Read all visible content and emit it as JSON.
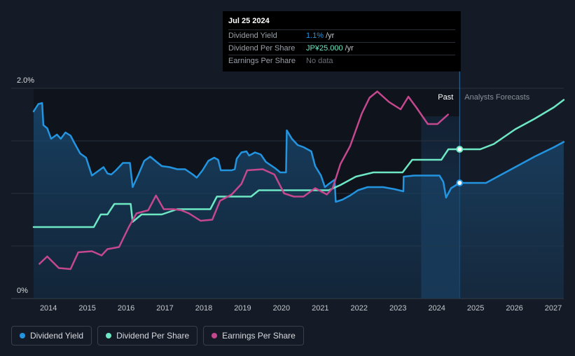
{
  "chart_data": {
    "type": "line",
    "title": "",
    "xlabel": "",
    "ylabel": "",
    "y_axis_labels": [
      "2.0%",
      "0%"
    ],
    "x_ticks": [
      "2014",
      "2015",
      "2016",
      "2017",
      "2018",
      "2019",
      "2020",
      "2021",
      "2022",
      "2023",
      "2024",
      "2025",
      "2026",
      "2027"
    ],
    "xlim": [
      2013.6,
      2027.25
    ],
    "ylim": [
      0,
      2.0
    ],
    "grid": true,
    "legend_position": "bottom-left",
    "region_labels": {
      "past": "Past",
      "forecast": "Analysts Forecasts"
    },
    "past_band": [
      2023.58,
      2024.57
    ],
    "series": [
      {
        "name": "Dividend Yield",
        "color": "#2394df",
        "filled": true,
        "points": [
          [
            2013.6,
            1.78
          ],
          [
            2013.72,
            1.85
          ],
          [
            2013.82,
            1.86
          ],
          [
            2013.85,
            1.65
          ],
          [
            2013.95,
            1.62
          ],
          [
            2014.05,
            1.52
          ],
          [
            2014.2,
            1.56
          ],
          [
            2014.3,
            1.52
          ],
          [
            2014.42,
            1.58
          ],
          [
            2014.55,
            1.55
          ],
          [
            2014.65,
            1.48
          ],
          [
            2014.8,
            1.38
          ],
          [
            2014.95,
            1.34
          ],
          [
            2015.1,
            1.17
          ],
          [
            2015.25,
            1.21
          ],
          [
            2015.4,
            1.25
          ],
          [
            2015.5,
            1.19
          ],
          [
            2015.6,
            1.18
          ],
          [
            2015.72,
            1.22
          ],
          [
            2015.9,
            1.29
          ],
          [
            2016.08,
            1.29
          ],
          [
            2016.15,
            1.06
          ],
          [
            2016.3,
            1.18
          ],
          [
            2016.45,
            1.31
          ],
          [
            2016.6,
            1.35
          ],
          [
            2016.8,
            1.29
          ],
          [
            2016.9,
            1.26
          ],
          [
            2017.1,
            1.25
          ],
          [
            2017.3,
            1.23
          ],
          [
            2017.5,
            1.23
          ],
          [
            2017.7,
            1.18
          ],
          [
            2017.8,
            1.15
          ],
          [
            2017.95,
            1.22
          ],
          [
            2018.1,
            1.31
          ],
          [
            2018.25,
            1.34
          ],
          [
            2018.35,
            1.32
          ],
          [
            2018.42,
            1.22
          ],
          [
            2018.7,
            1.22
          ],
          [
            2018.78,
            1.23
          ],
          [
            2018.83,
            1.33
          ],
          [
            2018.95,
            1.39
          ],
          [
            2019.08,
            1.4
          ],
          [
            2019.15,
            1.36
          ],
          [
            2019.3,
            1.39
          ],
          [
            2019.45,
            1.37
          ],
          [
            2019.58,
            1.3
          ],
          [
            2019.7,
            1.27
          ],
          [
            2019.82,
            1.24
          ],
          [
            2019.95,
            1.2
          ],
          [
            2020.1,
            1.2
          ],
          [
            2020.12,
            1.6
          ],
          [
            2020.25,
            1.52
          ],
          [
            2020.4,
            1.46
          ],
          [
            2020.55,
            1.44
          ],
          [
            2020.75,
            1.4
          ],
          [
            2020.85,
            1.26
          ],
          [
            2021.0,
            1.17
          ],
          [
            2021.1,
            1.06
          ],
          [
            2021.2,
            1.09
          ],
          [
            2021.35,
            1.13
          ],
          [
            2021.38,
            0.92
          ],
          [
            2021.55,
            0.94
          ],
          [
            2021.75,
            0.98
          ],
          [
            2021.95,
            1.03
          ],
          [
            2022.2,
            1.06
          ],
          [
            2022.6,
            1.06
          ],
          [
            2022.9,
            1.04
          ],
          [
            2023.12,
            1.02
          ],
          [
            2023.13,
            1.16
          ],
          [
            2023.4,
            1.17
          ],
          [
            2023.75,
            1.17
          ],
          [
            2024.05,
            1.17
          ],
          [
            2024.15,
            1.11
          ],
          [
            2024.22,
            0.96
          ],
          [
            2024.35,
            1.05
          ],
          [
            2024.57,
            1.1
          ],
          [
            2024.85,
            1.1
          ],
          [
            2025.25,
            1.1
          ],
          [
            2025.55,
            1.16
          ],
          [
            2026.0,
            1.25
          ],
          [
            2026.5,
            1.35
          ],
          [
            2027.0,
            1.44
          ],
          [
            2027.25,
            1.49
          ]
        ]
      },
      {
        "name": "Dividend Per Share",
        "color": "#6ee7c4",
        "points": [
          [
            2013.6,
            0.68
          ],
          [
            2015.15,
            0.68
          ],
          [
            2015.33,
            0.8
          ],
          [
            2015.5,
            0.8
          ],
          [
            2015.68,
            0.9
          ],
          [
            2016.1,
            0.9
          ],
          [
            2016.15,
            0.73
          ],
          [
            2016.38,
            0.8
          ],
          [
            2016.9,
            0.8
          ],
          [
            2017.3,
            0.85
          ],
          [
            2017.9,
            0.85
          ],
          [
            2018.15,
            0.85
          ],
          [
            2018.32,
            0.97
          ],
          [
            2019.2,
            0.97
          ],
          [
            2019.4,
            1.03
          ],
          [
            2020.7,
            1.03
          ],
          [
            2021.2,
            1.03
          ],
          [
            2021.5,
            1.08
          ],
          [
            2021.9,
            1.16
          ],
          [
            2022.35,
            1.2
          ],
          [
            2023.1,
            1.2
          ],
          [
            2023.35,
            1.32
          ],
          [
            2024.1,
            1.32
          ],
          [
            2024.28,
            1.42
          ],
          [
            2024.57,
            1.42
          ],
          [
            2025.1,
            1.42
          ],
          [
            2025.45,
            1.47
          ],
          [
            2026.0,
            1.61
          ],
          [
            2026.5,
            1.71
          ],
          [
            2027.0,
            1.82
          ],
          [
            2027.25,
            1.89
          ]
        ]
      },
      {
        "name": "Earnings Per Share",
        "color": "#c5488f",
        "points": [
          [
            2013.75,
            0.33
          ],
          [
            2013.95,
            0.4
          ],
          [
            2014.25,
            0.29
          ],
          [
            2014.55,
            0.28
          ],
          [
            2014.75,
            0.44
          ],
          [
            2015.1,
            0.45
          ],
          [
            2015.35,
            0.41
          ],
          [
            2015.5,
            0.47
          ],
          [
            2015.8,
            0.49
          ],
          [
            2016.05,
            0.68
          ],
          [
            2016.25,
            0.81
          ],
          [
            2016.55,
            0.84
          ],
          [
            2016.75,
            0.98
          ],
          [
            2016.95,
            0.85
          ],
          [
            2017.2,
            0.85
          ],
          [
            2017.4,
            0.84
          ],
          [
            2017.6,
            0.81
          ],
          [
            2017.9,
            0.74
          ],
          [
            2018.2,
            0.75
          ],
          [
            2018.4,
            0.93
          ],
          [
            2018.7,
            0.99
          ],
          [
            2018.95,
            1.09
          ],
          [
            2019.1,
            1.22
          ],
          [
            2019.5,
            1.23
          ],
          [
            2019.8,
            1.18
          ],
          [
            2020.05,
            1.0
          ],
          [
            2020.3,
            0.97
          ],
          [
            2020.55,
            0.97
          ],
          [
            2020.85,
            1.05
          ],
          [
            2021.15,
            0.99
          ],
          [
            2021.3,
            1.05
          ],
          [
            2021.5,
            1.28
          ],
          [
            2021.75,
            1.45
          ],
          [
            2022.05,
            1.76
          ],
          [
            2022.25,
            1.91
          ],
          [
            2022.45,
            1.97
          ],
          [
            2022.75,
            1.87
          ],
          [
            2023.05,
            1.8
          ],
          [
            2023.25,
            1.92
          ],
          [
            2023.45,
            1.82
          ],
          [
            2023.75,
            1.66
          ],
          [
            2024.0,
            1.66
          ],
          [
            2024.27,
            1.75
          ]
        ]
      }
    ],
    "markers": [
      {
        "series": "Dividend Per Share",
        "x": 2024.57,
        "y": 1.42
      },
      {
        "series": "Dividend Yield",
        "x": 2024.57,
        "y": 1.1
      }
    ]
  },
  "tooltip": {
    "date": "Jul 25 2024",
    "rows": [
      {
        "label": "Dividend Yield",
        "value": "1.1%",
        "unit": "/yr"
      },
      {
        "label": "Dividend Per Share",
        "value": "JP¥25.000",
        "unit": "/yr"
      },
      {
        "label": "Earnings Per Share",
        "value": "No data",
        "unit": ""
      }
    ]
  },
  "legend": [
    {
      "label": "Dividend Yield",
      "color": "#2394df"
    },
    {
      "label": "Dividend Per Share",
      "color": "#6ee7c4"
    },
    {
      "label": "Earnings Per Share",
      "color": "#c5488f"
    }
  ]
}
